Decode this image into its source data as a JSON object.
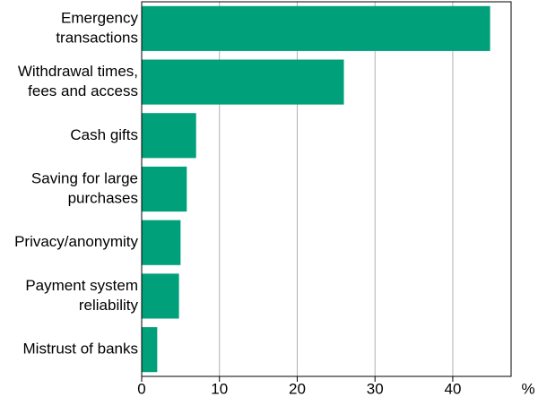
{
  "chart_data": {
    "type": "bar",
    "orientation": "horizontal",
    "categories": [
      [
        "Emergency",
        "transactions"
      ],
      [
        "Withdrawal times,",
        "fees and access"
      ],
      [
        "Cash gifts"
      ],
      [
        "Saving for large",
        "purchases"
      ],
      [
        "Privacy/anonymity"
      ],
      [
        "Payment system",
        "reliability"
      ],
      [
        "Mistrust of banks"
      ]
    ],
    "values": [
      44.8,
      26.0,
      7.0,
      5.8,
      5.0,
      4.8,
      2.0
    ],
    "color": "#00a07a",
    "xlim": [
      0,
      47.5
    ],
    "xticks": [
      0,
      10,
      20,
      30,
      40
    ],
    "xlabel": "%",
    "grid": true
  }
}
